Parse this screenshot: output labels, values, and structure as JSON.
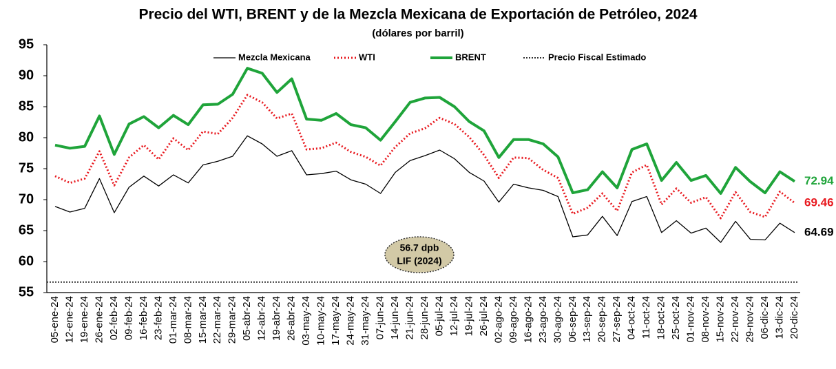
{
  "chart_data": {
    "type": "line",
    "title": "Precio del WTI, BRENT y de la Mezcla Mexicana de Exportación de Petróleo, 2024",
    "subtitle": "(dólares por barril)",
    "categories": [
      "05-ene-24",
      "12-ene-24",
      "19-ene-24",
      "26-ene-24",
      "02-feb-24",
      "09-feb-24",
      "16-feb-24",
      "23-feb-24",
      "01-mar-24",
      "08-mar-24",
      "15-mar-24",
      "22-mar-24",
      "29-mar-24",
      "05-abr-24",
      "12-abr-24",
      "19-abr-24",
      "26-abr-24",
      "03-may-24",
      "10-may-24",
      "17-may-24",
      "24-may-24",
      "31-may-24",
      "07-jun-24",
      "14-jun-24",
      "21-jun-24",
      "28-jun-24",
      "05-jul-24",
      "12-jul-24",
      "19-jul-24",
      "26-jul-24",
      "02-ago-24",
      "09-ago-24",
      "16-ago-24",
      "23-ago-24",
      "30-ago-24",
      "06-sep-24",
      "13-sep-24",
      "20-sep-24",
      "27-sep-24",
      "04-oct-24",
      "11-oct-24",
      "18-oct-24",
      "25-oct-24",
      "01-nov-24",
      "08-nov-24",
      "15-nov-24",
      "22-nov-24",
      "29-nov-24",
      "06-dic-24",
      "13-dic-24",
      "20-dic-24"
    ],
    "series": [
      {
        "name": "Mezcla Mexicana",
        "color": "#000000",
        "style": "solid",
        "values": [
          68.9,
          68.0,
          68.6,
          73.4,
          67.9,
          72.0,
          73.8,
          72.2,
          74.0,
          72.7,
          75.6,
          76.2,
          77.0,
          80.3,
          79.0,
          77.0,
          77.9,
          74.0,
          74.2,
          74.6,
          73.2,
          72.5,
          71.0,
          74.4,
          76.3,
          77.1,
          78.0,
          76.6,
          74.4,
          73.0,
          69.6,
          72.5,
          71.9,
          71.5,
          70.5,
          64.0,
          64.3,
          67.3,
          64.2,
          69.7,
          70.5,
          64.7,
          66.6,
          64.6,
          65.4,
          63.1,
          66.5,
          63.6,
          63.5,
          66.2,
          64.69
        ]
      },
      {
        "name": "WTI",
        "color": "#e8191f",
        "style": "dotted",
        "values": [
          73.8,
          72.7,
          73.4,
          77.8,
          72.3,
          76.8,
          78.8,
          76.5,
          79.9,
          78.0,
          81.0,
          80.6,
          83.2,
          86.9,
          85.7,
          83.1,
          83.9,
          78.1,
          78.3,
          79.2,
          77.7,
          76.9,
          75.5,
          78.5,
          80.7,
          81.5,
          83.2,
          82.2,
          80.1,
          77.2,
          73.5,
          76.8,
          76.7,
          74.8,
          73.5,
          67.7,
          68.7,
          71.0,
          68.2,
          74.4,
          75.6,
          69.2,
          71.8,
          69.5,
          70.4,
          67.0,
          71.2,
          68.0,
          67.2,
          71.3,
          69.46
        ]
      },
      {
        "name": "BRENT",
        "color": "#1fa43a",
        "style": "thick",
        "values": [
          78.8,
          78.3,
          78.6,
          83.5,
          77.3,
          82.2,
          83.4,
          81.6,
          83.6,
          82.1,
          85.3,
          85.4,
          87.0,
          91.2,
          90.4,
          87.3,
          89.5,
          83.0,
          82.8,
          83.9,
          82.1,
          81.6,
          79.6,
          82.6,
          85.7,
          86.4,
          86.5,
          85.0,
          82.6,
          81.1,
          76.8,
          79.7,
          79.7,
          79.0,
          76.9,
          71.1,
          71.6,
          74.5,
          71.9,
          78.1,
          79.0,
          73.1,
          76.0,
          73.1,
          73.9,
          71.0,
          75.2,
          72.9,
          71.1,
          74.5,
          72.94
        ]
      },
      {
        "name": "Precio Fiscal Estimado",
        "color": "#333333",
        "style": "fiscal",
        "value": 56.7
      }
    ],
    "annotation": [
      "56.7 dpb",
      "LIF (2024)"
    ],
    "ylim": [
      55,
      95
    ],
    "yticks": [
      55,
      60,
      65,
      70,
      75,
      80,
      85,
      90,
      95
    ],
    "grid": false
  }
}
